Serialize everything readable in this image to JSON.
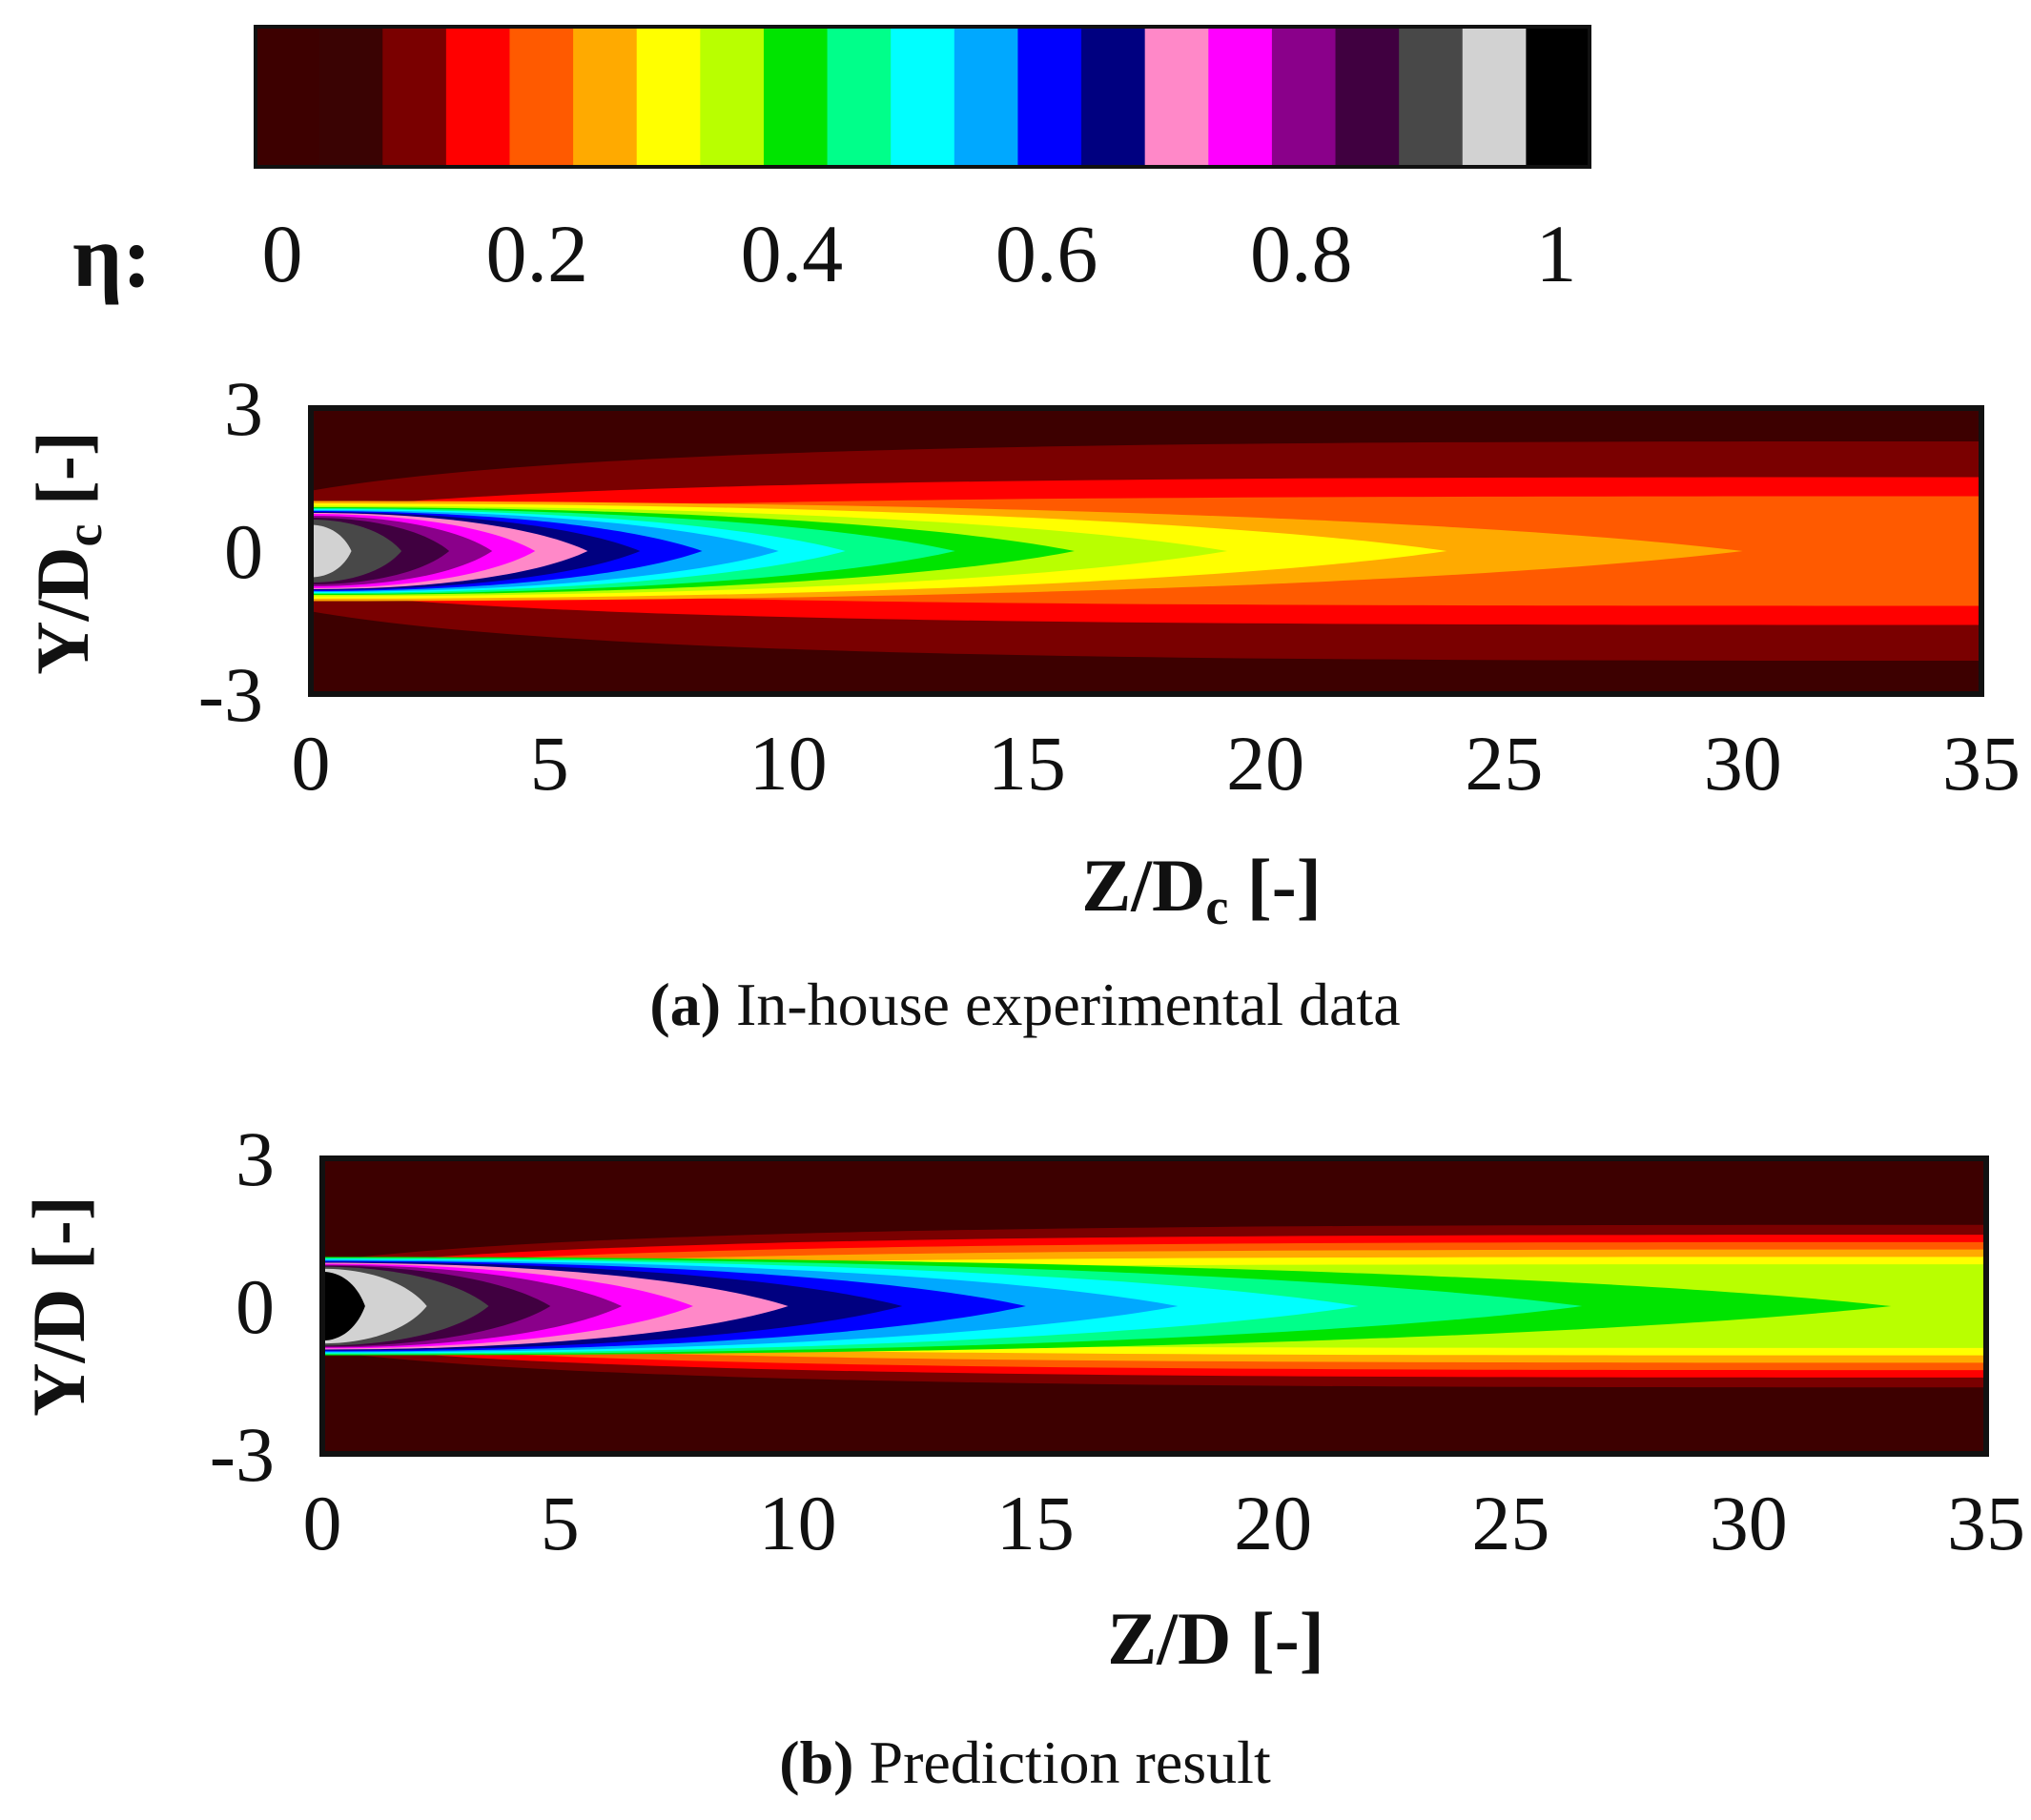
{
  "colorbar": {
    "symbol": "η:",
    "labels": [
      "0",
      "0.2",
      "0.4",
      "0.6",
      "0.8",
      "1"
    ],
    "label_values": [
      0,
      0.2,
      0.4,
      0.6,
      0.8,
      1
    ],
    "colors": [
      "#3d0000",
      "#3a0303",
      "#7a0000",
      "#ff0000",
      "#ff5a00",
      "#ffaa00",
      "#ffff00",
      "#b9ff00",
      "#00e400",
      "#00ff8a",
      "#00ffff",
      "#00a8ff",
      "#0000ff",
      "#000080",
      "#ff88c8",
      "#ff00ff",
      "#8a008a",
      "#400040",
      "#484848",
      "#d2d2d2",
      "#000000"
    ]
  },
  "chart_data": [
    {
      "type": "heatmap",
      "panel_id": "a",
      "caption_letter": "a",
      "caption_text": "In-house experimental data",
      "xlabel": "Z/D",
      "xlabel_sub": "c",
      "xlabel_suffix": "[-]",
      "ylabel": "Y/D",
      "ylabel_sub": "c",
      "ylabel_suffix": "[-]",
      "xlim": [
        0,
        35
      ],
      "ylim": [
        -3,
        3
      ],
      "xticks": [
        "0",
        "5",
        "10",
        "15",
        "20",
        "25",
        "30",
        "35"
      ],
      "yticks": [
        "3",
        "0",
        "-3"
      ],
      "field": "eta",
      "background_level": 0.02,
      "contour_levels": [
        {
          "eta": 0.05,
          "color": "#7a0000",
          "z_tip": 35,
          "y_halfwidth": 2.3
        },
        {
          "eta": 0.1,
          "color": "#ff0000",
          "z_tip": 35,
          "y_halfwidth": 1.55
        },
        {
          "eta": 0.15,
          "color": "#ff5a00",
          "z_tip": 35,
          "y_halfwidth": 1.15
        },
        {
          "eta": 0.2,
          "color": "#ffaa00",
          "z_tip": 30,
          "y_halfwidth": 1.05
        },
        {
          "eta": 0.25,
          "color": "#ffff00",
          "z_tip": 23.8,
          "y_halfwidth": 1.0
        },
        {
          "eta": 0.3,
          "color": "#b9ff00",
          "z_tip": 19.2,
          "y_halfwidth": 0.95
        },
        {
          "eta": 0.35,
          "color": "#00e400",
          "z_tip": 16.0,
          "y_halfwidth": 0.92
        },
        {
          "eta": 0.4,
          "color": "#00ff8a",
          "z_tip": 13.5,
          "y_halfwidth": 0.9
        },
        {
          "eta": 0.45,
          "color": "#00ffff",
          "z_tip": 11.2,
          "y_halfwidth": 0.88
        },
        {
          "eta": 0.5,
          "color": "#00a8ff",
          "z_tip": 9.8,
          "y_halfwidth": 0.86
        },
        {
          "eta": 0.55,
          "color": "#0000ff",
          "z_tip": 8.2,
          "y_halfwidth": 0.84
        },
        {
          "eta": 0.6,
          "color": "#000080",
          "z_tip": 6.9,
          "y_halfwidth": 0.82
        },
        {
          "eta": 0.65,
          "color": "#ff88c8",
          "z_tip": 5.8,
          "y_halfwidth": 0.8
        },
        {
          "eta": 0.7,
          "color": "#ff00ff",
          "z_tip": 4.7,
          "y_halfwidth": 0.78
        },
        {
          "eta": 0.75,
          "color": "#8a008a",
          "z_tip": 3.8,
          "y_halfwidth": 0.74
        },
        {
          "eta": 0.8,
          "color": "#400040",
          "z_tip": 2.9,
          "y_halfwidth": 0.7
        },
        {
          "eta": 0.85,
          "color": "#484848",
          "z_tip": 1.9,
          "y_halfwidth": 0.66
        },
        {
          "eta": 0.9,
          "color": "#d2d2d2",
          "z_tip": 0.85,
          "y_halfwidth": 0.55
        }
      ]
    },
    {
      "type": "heatmap",
      "panel_id": "b",
      "caption_letter": "b",
      "caption_text": "Prediction result",
      "xlabel": "Z/D",
      "xlabel_sub": "",
      "xlabel_suffix": "[-]",
      "ylabel": "Y/D",
      "ylabel_sub": "",
      "ylabel_suffix": "[-]",
      "xlim": [
        0,
        35
      ],
      "ylim": [
        -3,
        3
      ],
      "xticks": [
        "0",
        "5",
        "10",
        "15",
        "20",
        "25",
        "30",
        "35"
      ],
      "yticks": [
        "3",
        "0",
        "-3"
      ],
      "field": "eta",
      "background_level": 0.02,
      "contour_levels": [
        {
          "eta": 0.05,
          "color": "#7a0000",
          "z_tip": 35,
          "y_halfwidth": 1.65
        },
        {
          "eta": 0.1,
          "color": "#ff0000",
          "z_tip": 35,
          "y_halfwidth": 1.45
        },
        {
          "eta": 0.15,
          "color": "#ff5a00",
          "z_tip": 35,
          "y_halfwidth": 1.3
        },
        {
          "eta": 0.2,
          "color": "#ffaa00",
          "z_tip": 35,
          "y_halfwidth": 1.15
        },
        {
          "eta": 0.25,
          "color": "#ffff00",
          "z_tip": 35,
          "y_halfwidth": 1.0
        },
        {
          "eta": 0.3,
          "color": "#b9ff00",
          "z_tip": 35,
          "y_halfwidth": 0.85
        },
        {
          "eta": 0.35,
          "color": "#00e400",
          "z_tip": 33.0,
          "y_halfwidth": 1.0
        },
        {
          "eta": 0.4,
          "color": "#00ff8a",
          "z_tip": 26.5,
          "y_halfwidth": 0.98
        },
        {
          "eta": 0.45,
          "color": "#00ffff",
          "z_tip": 21.8,
          "y_halfwidth": 0.96
        },
        {
          "eta": 0.5,
          "color": "#00a8ff",
          "z_tip": 18.0,
          "y_halfwidth": 0.94
        },
        {
          "eta": 0.55,
          "color": "#0000ff",
          "z_tip": 14.8,
          "y_halfwidth": 0.92
        },
        {
          "eta": 0.6,
          "color": "#000080",
          "z_tip": 12.2,
          "y_halfwidth": 0.9
        },
        {
          "eta": 0.65,
          "color": "#ff88c8",
          "z_tip": 9.8,
          "y_halfwidth": 0.88
        },
        {
          "eta": 0.7,
          "color": "#ff00ff",
          "z_tip": 7.8,
          "y_halfwidth": 0.86
        },
        {
          "eta": 0.75,
          "color": "#8a008a",
          "z_tip": 6.3,
          "y_halfwidth": 0.84
        },
        {
          "eta": 0.8,
          "color": "#400040",
          "z_tip": 4.8,
          "y_halfwidth": 0.82
        },
        {
          "eta": 0.85,
          "color": "#484848",
          "z_tip": 3.5,
          "y_halfwidth": 0.8
        },
        {
          "eta": 0.9,
          "color": "#d2d2d2",
          "z_tip": 2.2,
          "y_halfwidth": 0.76
        },
        {
          "eta": 0.95,
          "color": "#000000",
          "z_tip": 0.9,
          "y_halfwidth": 0.7
        }
      ]
    }
  ]
}
